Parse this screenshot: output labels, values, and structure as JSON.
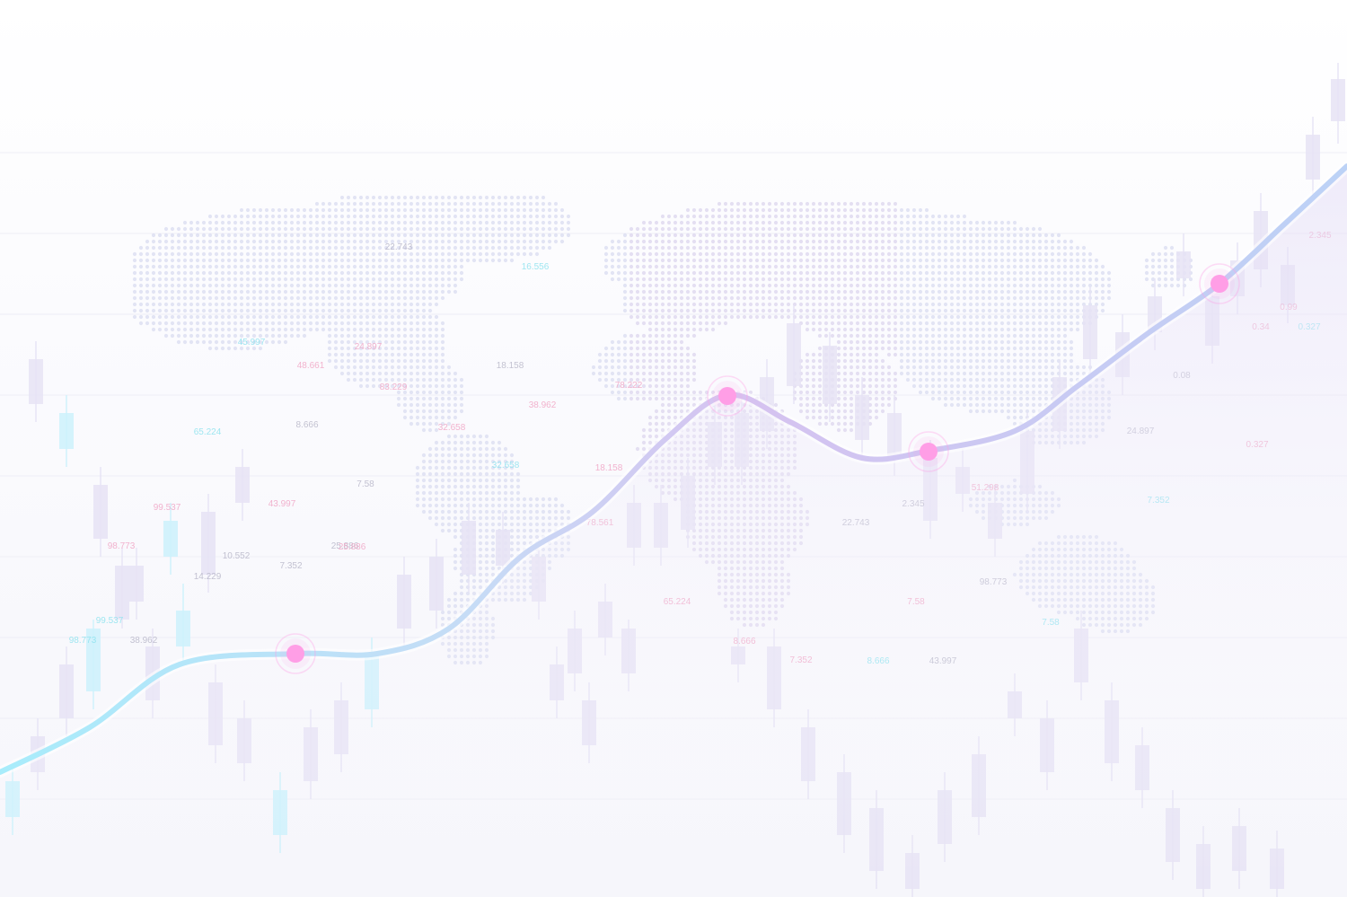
{
  "scene": {
    "colors": {
      "background": "#fbfbfe",
      "map_dots": "#d9dcf0",
      "candle_fill": "#e6e3f5",
      "candle_cyan": "#cdf1fb",
      "line_start": "#a8ecfb",
      "line_mid": "#cdbcf0",
      "line_end": "#c4d4f6",
      "marker": "#ff9ee6",
      "label_pink": "#f0a6c6",
      "label_cyan": "#8fe3ef",
      "label_gray": "#b9b7c9"
    },
    "labels": [
      {
        "text": "22.743",
        "tone": "gray"
      },
      {
        "text": "16.556",
        "tone": "cyan"
      },
      {
        "text": "24.897",
        "tone": "pink"
      },
      {
        "text": "45.997",
        "tone": "cyan"
      },
      {
        "text": "48.661",
        "tone": "pink"
      },
      {
        "text": "18.158",
        "tone": "gray"
      },
      {
        "text": "83.229",
        "tone": "pink"
      },
      {
        "text": "38.962",
        "tone": "pink"
      },
      {
        "text": "32.658",
        "tone": "pink"
      },
      {
        "text": "65.224",
        "tone": "cyan"
      },
      {
        "text": "8.666",
        "tone": "gray"
      },
      {
        "text": "25.886",
        "tone": "gray"
      },
      {
        "text": "99.537",
        "tone": "pink"
      },
      {
        "text": "43.997",
        "tone": "pink"
      },
      {
        "text": "7.58",
        "tone": "gray"
      },
      {
        "text": "32.658",
        "tone": "cyan"
      },
      {
        "text": "98.773",
        "tone": "pink"
      },
      {
        "text": "10.552",
        "tone": "gray"
      },
      {
        "text": "14.229",
        "tone": "gray"
      },
      {
        "text": "7.352",
        "tone": "gray"
      },
      {
        "text": "25.886",
        "tone": "pink"
      },
      {
        "text": "38.962",
        "tone": "gray"
      },
      {
        "text": "99.537",
        "tone": "cyan"
      },
      {
        "text": "98.773",
        "tone": "cyan"
      },
      {
        "text": "78.222",
        "tone": "pink"
      },
      {
        "text": "18.158",
        "tone": "pink"
      },
      {
        "text": "78.561",
        "tone": "pink"
      },
      {
        "text": "65.224",
        "tone": "pink"
      },
      {
        "text": "8.666",
        "tone": "pink"
      },
      {
        "text": "22.743",
        "tone": "gray"
      },
      {
        "text": "7.352",
        "tone": "pink"
      },
      {
        "text": "8.666",
        "tone": "cyan"
      },
      {
        "text": "43.997",
        "tone": "gray"
      },
      {
        "text": "7.58",
        "tone": "pink"
      },
      {
        "text": "2.345",
        "tone": "gray"
      },
      {
        "text": "51.298",
        "tone": "pink"
      },
      {
        "text": "98.773",
        "tone": "gray"
      },
      {
        "text": "7.58",
        "tone": "cyan"
      },
      {
        "text": "24.897",
        "tone": "gray"
      },
      {
        "text": "0.327",
        "tone": "pink"
      },
      {
        "text": "7.352",
        "tone": "cyan"
      },
      {
        "text": "0.08",
        "tone": "gray"
      },
      {
        "text": "0.34",
        "tone": "pink"
      },
      {
        "text": "0.99",
        "tone": "pink"
      },
      {
        "text": "0.327",
        "tone": "cyan"
      },
      {
        "text": "2.345",
        "tone": "pink"
      }
    ]
  }
}
